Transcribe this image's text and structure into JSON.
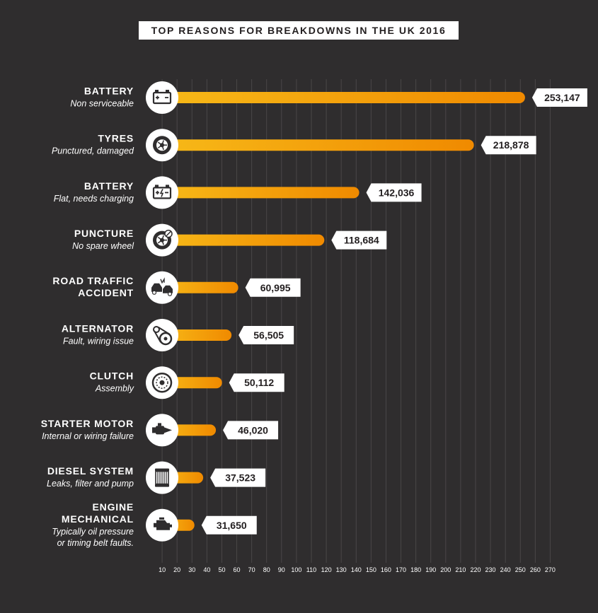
{
  "chart_data": {
    "type": "bar",
    "orientation": "horizontal",
    "title": "TOP REASONS FOR BREAKDOWNS IN THE UK 2016",
    "xlim": [
      0,
      270
    ],
    "tick_values": [
      10,
      20,
      30,
      40,
      50,
      60,
      70,
      80,
      90,
      100,
      110,
      120,
      130,
      140,
      150,
      160,
      170,
      180,
      190,
      200,
      210,
      220,
      230,
      240,
      250,
      260,
      270
    ],
    "grid": true,
    "colors": {
      "background": "#2f2d2e",
      "bar_start": "#f7b918",
      "bar_end": "#f08a00",
      "label_bg": "#ffffff",
      "grid": "#4a4748"
    },
    "categories": [
      {
        "main": [
          "BATTERY"
        ],
        "sub": [
          "Non serviceable"
        ],
        "value": 253147,
        "value_label": "253,147",
        "icon": "battery-icon"
      },
      {
        "main": [
          "TYRES"
        ],
        "sub": [
          "Punctured, damaged"
        ],
        "value": 218878,
        "value_label": "218,878",
        "icon": "tyre-icon"
      },
      {
        "main": [
          "BATTERY"
        ],
        "sub": [
          "Flat, needs charging"
        ],
        "value": 142036,
        "value_label": "142,036",
        "icon": "battery-charging-icon"
      },
      {
        "main": [
          "PUNCTURE"
        ],
        "sub": [
          "No spare wheel"
        ],
        "value": 118684,
        "value_label": "118,684",
        "icon": "puncture-icon"
      },
      {
        "main": [
          "ROAD TRAFFIC",
          "ACCIDENT"
        ],
        "sub": [],
        "value": 60995,
        "value_label": "60,995",
        "icon": "car-crash-icon"
      },
      {
        "main": [
          "ALTERNATOR"
        ],
        "sub": [
          "Fault, wiring issue"
        ],
        "value": 56505,
        "value_label": "56,505",
        "icon": "alternator-icon"
      },
      {
        "main": [
          "CLUTCH"
        ],
        "sub": [
          "Assembly"
        ],
        "value": 50112,
        "value_label": "50,112",
        "icon": "clutch-icon"
      },
      {
        "main": [
          "STARTER MOTOR"
        ],
        "sub": [
          "Internal or wiring failure"
        ],
        "value": 46020,
        "value_label": "46,020",
        "icon": "starter-motor-icon"
      },
      {
        "main": [
          "DIESEL SYSTEM"
        ],
        "sub": [
          "Leaks, filter and pump"
        ],
        "value": 37523,
        "value_label": "37,523",
        "icon": "diesel-filter-icon"
      },
      {
        "main": [
          "ENGINE",
          "MECHANICAL"
        ],
        "sub": [
          "Typically oil pressure",
          "or timing belt faults."
        ],
        "value": 31650,
        "value_label": "31,650",
        "icon": "engine-icon"
      }
    ]
  }
}
